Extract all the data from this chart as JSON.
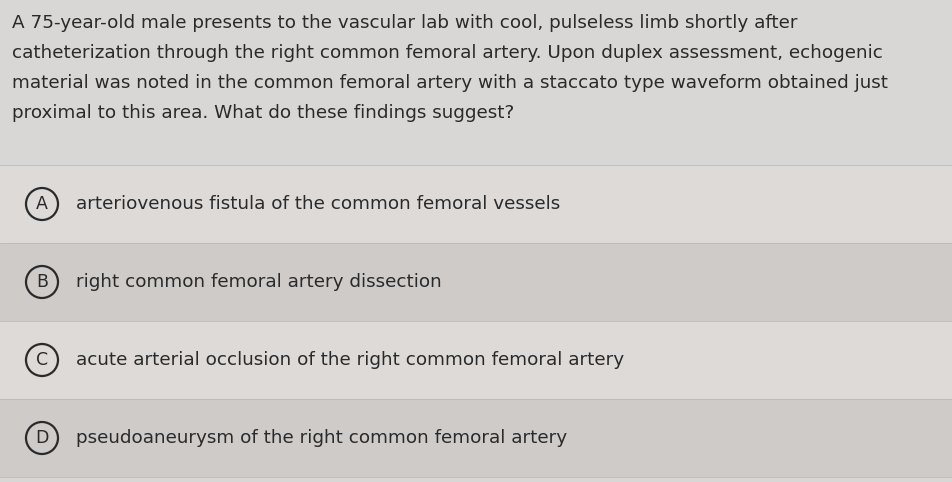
{
  "background_color": "#d9d7d5",
  "option_rows": [
    {
      "bg": "#dedad7",
      "label": "A",
      "text": "arteriovenous fistula of the common femoral vessels"
    },
    {
      "bg": "#cfcbc8",
      "label": "B",
      "text": "right common femoral artery dissection"
    },
    {
      "bg": "#dedad7",
      "label": "C",
      "text": "acute arterial occlusion of the right common femoral artery"
    },
    {
      "bg": "#cfcbc8",
      "label": "D",
      "text": "pseudoaneurysm of the right common femoral artery"
    }
  ],
  "question_text_lines": [
    "A 75-year-old male presents to the vascular lab with cool, pulseless limb shortly after",
    "catheterization through the right common femoral artery. Upon duplex assessment, echogenic",
    "material was noted in the common femoral artery with a staccato type waveform obtained just",
    "proximal to this area. What do these findings suggest?"
  ],
  "text_color": "#2a2a2a",
  "question_fontsize": 13.2,
  "option_fontsize": 13.2,
  "label_fontsize": 12.5,
  "fig_width": 9.53,
  "fig_height": 4.82,
  "dpi": 100
}
